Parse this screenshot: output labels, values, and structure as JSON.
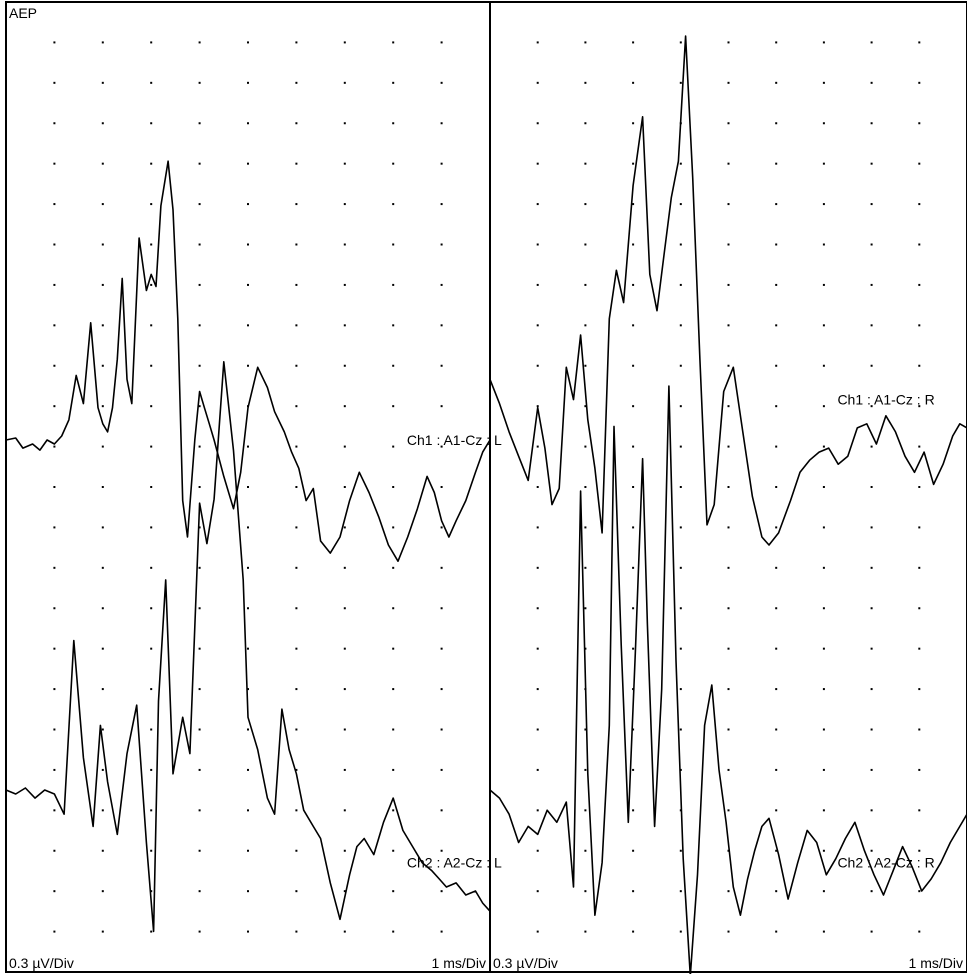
{
  "chart_data": {
    "type": "line",
    "title": "AEP",
    "grid": true,
    "grid_style": "dotted",
    "panels": [
      {
        "side": "left",
        "y_scale": "0.3 µV/Div",
        "x_scale": "1 ms/Div",
        "show_title": true,
        "series": [
          {
            "name": "Ch1 : A1-Cz : L",
            "x": [
              0,
              0.2,
              0.35,
              0.55,
              0.7,
              0.85,
              1.0,
              1.15,
              1.3,
              1.45,
              1.6,
              1.75,
              1.9,
              2.0,
              2.1,
              2.2,
              2.3,
              2.4,
              2.5,
              2.6,
              2.75,
              2.9,
              3.0,
              3.1,
              3.2,
              3.35,
              3.45,
              3.55,
              3.65,
              3.75,
              3.9,
              4.0,
              4.1,
              4.2,
              4.3,
              4.5,
              4.7,
              4.85,
              5.0,
              5.2,
              5.4,
              5.55,
              5.75,
              5.9,
              6.05,
              6.2,
              6.35,
              6.5,
              6.7,
              6.9,
              7.1,
              7.3,
              7.5,
              7.7,
              7.9,
              8.1,
              8.3,
              8.5,
              8.7,
              8.85,
              9.0,
              9.15,
              9.3,
              9.5,
              9.7,
              9.85,
              10.0
            ],
            "y": [
              0.0,
              0.05,
              -0.2,
              -0.1,
              -0.25,
              0.0,
              -0.1,
              0.1,
              0.5,
              1.6,
              0.9,
              2.9,
              0.8,
              0.4,
              0.2,
              0.8,
              2.0,
              4.0,
              1.5,
              0.9,
              5.0,
              3.7,
              4.1,
              3.8,
              5.8,
              6.9,
              5.7,
              3.0,
              -1.5,
              -2.4,
              0.0,
              1.2,
              0.8,
              0.4,
              0.0,
              -0.9,
              -1.7,
              -0.8,
              0.8,
              1.8,
              1.3,
              0.7,
              0.2,
              -0.3,
              -0.7,
              -1.5,
              -1.2,
              -2.5,
              -2.8,
              -2.4,
              -1.5,
              -0.8,
              -1.3,
              -1.9,
              -2.6,
              -3.0,
              -2.4,
              -1.7,
              -0.9,
              -1.3,
              -2.0,
              -2.4,
              -2.0,
              -1.5,
              -0.8,
              -0.3,
              0.0
            ],
            "label_anchor": [
              8.2,
              0.0
            ]
          },
          {
            "name": "Ch2 : A2-Cz : L",
            "x": [
              0,
              0.2,
              0.4,
              0.6,
              0.8,
              1.0,
              1.2,
              1.4,
              1.6,
              1.8,
              1.95,
              2.1,
              2.3,
              2.5,
              2.7,
              2.9,
              3.05,
              3.15,
              3.3,
              3.45,
              3.65,
              3.8,
              4.0,
              4.15,
              4.3,
              4.5,
              4.7,
              4.9,
              5.0,
              5.2,
              5.4,
              5.55,
              5.7,
              5.85,
              6.0,
              6.15,
              6.35,
              6.5,
              6.7,
              6.9,
              7.1,
              7.25,
              7.4,
              7.6,
              7.8,
              8.0,
              8.2,
              8.4,
              8.6,
              8.8,
              8.95,
              9.1,
              9.3,
              9.5,
              9.7,
              9.85,
              10.0
            ],
            "y": [
              0.0,
              -0.1,
              0.05,
              -0.2,
              0.0,
              -0.1,
              -0.6,
              3.7,
              0.8,
              -0.9,
              1.6,
              0.2,
              -1.1,
              0.9,
              2.1,
              -1.3,
              -3.5,
              2.2,
              5.2,
              0.4,
              1.8,
              0.9,
              7.1,
              6.1,
              7.2,
              10.6,
              8.4,
              5.2,
              1.8,
              1.0,
              -0.2,
              -0.6,
              2.0,
              1.0,
              0.4,
              -0.5,
              -0.9,
              -1.2,
              -2.3,
              -3.2,
              -2.1,
              -1.4,
              -1.2,
              -1.6,
              -0.8,
              -0.2,
              -1.0,
              -1.4,
              -1.8,
              -2.0,
              -2.2,
              -2.4,
              -2.3,
              -2.6,
              -2.5,
              -2.8,
              -3.0
            ],
            "label_anchor": [
              8.2,
              -1.8
            ]
          }
        ]
      },
      {
        "side": "right",
        "y_scale": "0.3 µV/Div",
        "x_scale": "1 ms/Div",
        "show_title": false,
        "series": [
          {
            "name": "Ch1 : A1-Cz : R",
            "x": [
              0,
              0.2,
              0.4,
              0.6,
              0.8,
              1.0,
              1.15,
              1.3,
              1.45,
              1.6,
              1.75,
              1.9,
              2.05,
              2.2,
              2.35,
              2.5,
              2.65,
              2.8,
              3.0,
              3.2,
              3.35,
              3.5,
              3.65,
              3.8,
              3.95,
              4.1,
              4.25,
              4.4,
              4.55,
              4.7,
              4.9,
              5.1,
              5.3,
              5.5,
              5.7,
              5.85,
              6.05,
              6.3,
              6.5,
              6.7,
              6.9,
              7.1,
              7.3,
              7.5,
              7.7,
              7.9,
              8.1,
              8.3,
              8.5,
              8.7,
              8.9,
              9.1,
              9.3,
              9.5,
              9.7,
              9.85,
              10.0
            ],
            "y": [
              1.5,
              0.9,
              0.2,
              -0.4,
              -1.0,
              0.8,
              -0.2,
              -1.6,
              -1.2,
              1.8,
              1.0,
              2.6,
              0.5,
              -0.7,
              -2.3,
              3.0,
              4.2,
              3.4,
              6.3,
              8.0,
              4.1,
              3.2,
              4.6,
              6.0,
              6.9,
              10.0,
              6.5,
              2.0,
              -2.1,
              -1.6,
              1.2,
              1.8,
              0.2,
              -1.4,
              -2.4,
              -2.6,
              -2.3,
              -1.5,
              -0.8,
              -0.5,
              -0.3,
              -0.2,
              -0.6,
              -0.4,
              0.3,
              0.4,
              -0.1,
              0.6,
              0.2,
              -0.4,
              -0.8,
              -0.3,
              -1.1,
              -0.6,
              0.1,
              0.4,
              0.3
            ],
            "label_anchor": [
              7.2,
              1.0
            ]
          },
          {
            "name": "Ch2 : A2-Cz : R",
            "x": [
              0,
              0.2,
              0.4,
              0.6,
              0.8,
              1.0,
              1.2,
              1.4,
              1.6,
              1.75,
              1.9,
              2.05,
              2.2,
              2.35,
              2.5,
              2.6,
              2.75,
              2.9,
              3.05,
              3.2,
              3.3,
              3.45,
              3.6,
              3.75,
              3.9,
              4.05,
              4.2,
              4.35,
              4.5,
              4.65,
              4.8,
              4.95,
              5.1,
              5.25,
              5.4,
              5.55,
              5.7,
              5.85,
              6.05,
              6.25,
              6.45,
              6.65,
              6.85,
              7.05,
              7.25,
              7.45,
              7.65,
              7.85,
              8.05,
              8.25,
              8.45,
              8.65,
              8.85,
              9.05,
              9.25,
              9.45,
              9.65,
              9.85,
              10.0
            ],
            "y": [
              0.0,
              -0.2,
              -0.6,
              -1.3,
              -0.9,
              -1.1,
              -0.5,
              -0.8,
              -0.3,
              -2.4,
              7.4,
              0.4,
              -3.1,
              -1.8,
              1.6,
              9.0,
              3.6,
              -0.8,
              3.5,
              8.2,
              4.1,
              -0.9,
              2.5,
              10.0,
              3.2,
              -1.7,
              -4.6,
              -2.1,
              1.6,
              2.6,
              0.5,
              -0.8,
              -2.4,
              -3.1,
              -2.2,
              -1.5,
              -0.9,
              -0.7,
              -1.6,
              -2.7,
              -1.8,
              -1.0,
              -1.3,
              -2.1,
              -1.7,
              -1.2,
              -0.8,
              -1.5,
              -2.1,
              -2.6,
              -2.0,
              -1.4,
              -1.9,
              -2.5,
              -2.2,
              -1.8,
              -1.3,
              -0.9,
              -0.6
            ],
            "label_anchor": [
              7.2,
              -1.8
            ]
          }
        ]
      }
    ]
  }
}
